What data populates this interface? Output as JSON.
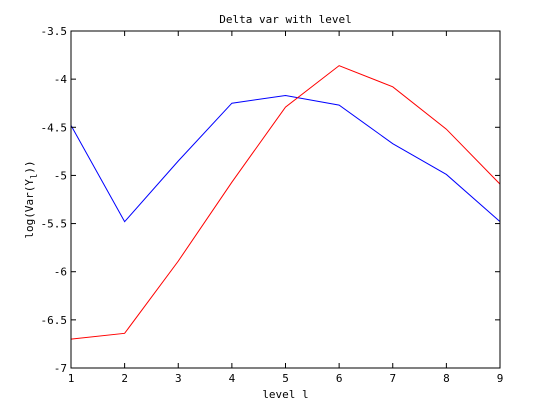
{
  "chart_data": {
    "type": "line",
    "title": "Delta var with level",
    "xlabel": "level l",
    "ylabel_prefix": "log(Var(Y",
    "ylabel_subscript": "l",
    "ylabel_suffix": "))",
    "xlim": [
      1,
      9
    ],
    "ylim": [
      -7,
      -3.5
    ],
    "x_ticks": [
      "1",
      "2",
      "3",
      "4",
      "5",
      "6",
      "7",
      "8",
      "9"
    ],
    "y_ticks": [
      "-7",
      "-6.5",
      "-6",
      "-5.5",
      "-5",
      "-4.5",
      "-4",
      "-3.5"
    ],
    "x": [
      1,
      2,
      3,
      4,
      5,
      6,
      7,
      8,
      9
    ],
    "series": [
      {
        "color": "#0000ff",
        "values": [
          -4.48,
          -5.48,
          -4.85,
          -4.25,
          -4.17,
          -4.27,
          -4.67,
          -4.99,
          -5.48
        ]
      },
      {
        "color": "#ff0000",
        "values": [
          -6.7,
          -6.64,
          -5.89,
          -5.07,
          -4.29,
          -3.86,
          -4.08,
          -4.52,
          -5.09
        ]
      }
    ],
    "grid": false,
    "box": true
  }
}
